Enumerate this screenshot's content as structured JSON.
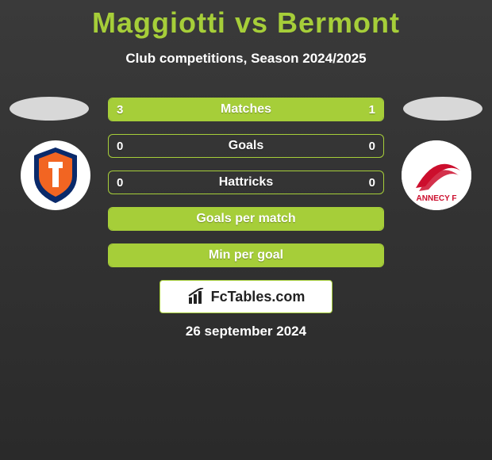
{
  "title": {
    "player1": "Maggiotti",
    "vs": "vs",
    "player2": "Bermont"
  },
  "subtitle": "Club competitions, Season 2024/2025",
  "bars": {
    "track_width": 348,
    "border_color": "#a6ce39",
    "fill_color": "#a6ce39",
    "text_color": "#ffffff",
    "rows": [
      {
        "label": "Matches",
        "left_val": "3",
        "right_val": "1",
        "left_pct": 75,
        "right_pct": 25
      },
      {
        "label": "Goals",
        "left_val": "0",
        "right_val": "0",
        "left_pct": 0,
        "right_pct": 0
      },
      {
        "label": "Hattricks",
        "left_val": "0",
        "right_val": "0",
        "left_pct": 0,
        "right_pct": 0
      },
      {
        "label": "Goals per match",
        "left_val": "",
        "right_val": "",
        "left_pct": 100,
        "right_pct": 0
      },
      {
        "label": "Min per goal",
        "left_val": "",
        "right_val": "",
        "left_pct": 100,
        "right_pct": 0
      }
    ]
  },
  "clubs": {
    "left": {
      "name": "tappara-logo",
      "bg": "#ffffff",
      "shield": "#0a2a6b",
      "accent": "#f26522"
    },
    "right": {
      "name": "annecy-logo",
      "bg": "#ffffff",
      "swoosh": "#cc0e2d",
      "text": "ANNECY F"
    }
  },
  "brand": {
    "icon_name": "bar-chart-icon",
    "text": "FcTables.com"
  },
  "date": "26 september 2024",
  "colors": {
    "title": "#a6ce39",
    "bg_top": "#3a3a3a",
    "bg_bottom": "#2a2a2a"
  }
}
